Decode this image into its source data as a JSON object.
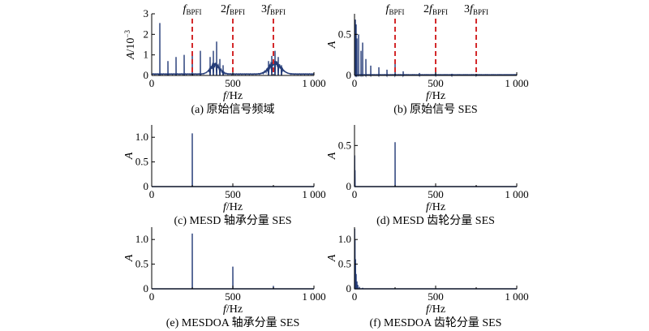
{
  "figure": {
    "marker_color": "#d3292b",
    "series_color": "#253c78"
  },
  "chart_data": [
    {
      "id": "a",
      "type": "line",
      "caption": "(a) 原始信号频域",
      "xlabel": "f/Hz",
      "ylabel": "A/10^-3",
      "xlim": [
        0,
        1000
      ],
      "ylim": [
        0,
        3
      ],
      "xticks": [
        "0",
        "500",
        "1 000"
      ],
      "yticks": [
        "0",
        "1",
        "2",
        "3"
      ],
      "markers": [
        {
          "x": 250,
          "prefix": "",
          "sub": "BPFI"
        },
        {
          "x": 500,
          "prefix": "2",
          "sub": "BPFI"
        },
        {
          "x": 750,
          "prefix": "3",
          "sub": "BPFI"
        }
      ],
      "peaks": [
        [
          50,
          2.55
        ],
        [
          100,
          0.7
        ],
        [
          150,
          0.9
        ],
        [
          200,
          1.0
        ],
        [
          250,
          1.1
        ],
        [
          300,
          1.2
        ],
        [
          360,
          0.9
        ],
        [
          380,
          1.2
        ],
        [
          400,
          1.65
        ],
        [
          420,
          0.8
        ],
        [
          440,
          0.5
        ],
        [
          720,
          0.7
        ],
        [
          740,
          0.95
        ],
        [
          760,
          1.2
        ],
        [
          780,
          0.9
        ],
        [
          800,
          0.5
        ]
      ],
      "humps": [
        {
          "center": 390,
          "width": 40,
          "height": 0.55
        },
        {
          "center": 760,
          "width": 50,
          "height": 0.65
        }
      ],
      "baseline": 0.08
    },
    {
      "id": "b",
      "type": "line",
      "caption": "(b) 原始信号 SES",
      "xlabel": "f/Hz",
      "ylabel": "A",
      "xlim": [
        0,
        1000
      ],
      "ylim": [
        0,
        0.75
      ],
      "xticks": [
        "0",
        "500",
        "1 000"
      ],
      "yticks": [
        "0",
        "0.5"
      ],
      "markers": [
        {
          "x": 250,
          "prefix": "",
          "sub": "BPFI"
        },
        {
          "x": 500,
          "prefix": "2",
          "sub": "BPFI"
        },
        {
          "x": 750,
          "prefix": "3",
          "sub": "BPFI"
        }
      ],
      "peaks": [
        [
          5,
          0.68
        ],
        [
          10,
          0.62
        ],
        [
          15,
          0.45
        ],
        [
          25,
          0.5
        ],
        [
          40,
          0.3
        ],
        [
          50,
          0.4
        ],
        [
          70,
          0.2
        ],
        [
          100,
          0.12
        ],
        [
          150,
          0.1
        ],
        [
          200,
          0.07
        ],
        [
          250,
          0.15
        ],
        [
          300,
          0.05
        ],
        [
          400,
          0.03
        ],
        [
          500,
          0.04
        ],
        [
          600,
          0.02
        ],
        [
          750,
          0.01
        ]
      ],
      "humps": [],
      "baseline": 0.01
    },
    {
      "id": "c",
      "type": "line",
      "caption": "(c) MESD 轴承分量 SES",
      "xlabel": "f/Hz",
      "ylabel": "A",
      "xlim": [
        0,
        1000
      ],
      "ylim": [
        0,
        1.25
      ],
      "xticks": [
        "0",
        "500",
        "1 000"
      ],
      "yticks": [
        "0",
        "0.5",
        "1.0"
      ],
      "markers": [],
      "peaks": [
        [
          250,
          1.08
        ]
      ],
      "humps": [],
      "baseline": 0.0
    },
    {
      "id": "d",
      "type": "line",
      "caption": "(d) MESD 齿轮分量 SES",
      "xlabel": "f/Hz",
      "ylabel": "A",
      "xlim": [
        0,
        1000
      ],
      "ylim": [
        0,
        0.75
      ],
      "xticks": [
        "0",
        "500",
        "1 000"
      ],
      "yticks": [
        "0",
        "0.5"
      ],
      "markers": [],
      "peaks": [
        [
          1,
          0.38
        ],
        [
          3,
          0.2
        ],
        [
          250,
          0.54
        ],
        [
          750,
          0.01
        ]
      ],
      "humps": [],
      "baseline": 0.0
    },
    {
      "id": "e",
      "type": "line",
      "caption": "(e) MESDOA 轴承分量 SES",
      "xlabel": "f/Hz",
      "ylabel": "A",
      "xlim": [
        0,
        1000
      ],
      "ylim": [
        0,
        1.25
      ],
      "xticks": [
        "0",
        "500",
        "1 000"
      ],
      "yticks": [
        "0",
        "0.5",
        "1.0"
      ],
      "markers": [],
      "peaks": [
        [
          250,
          1.12
        ],
        [
          500,
          0.45
        ],
        [
          750,
          0.06
        ]
      ],
      "humps": [],
      "baseline": 0.0
    },
    {
      "id": "f",
      "type": "line",
      "caption": "(f) MESDOA 齿轮分量 SES",
      "xlabel": "f/Hz",
      "ylabel": "A",
      "xlim": [
        0,
        1000
      ],
      "ylim": [
        0,
        1.25
      ],
      "xticks": [
        "0",
        "500",
        "1 000"
      ],
      "yticks": [
        "0",
        "0.5",
        "1.0"
      ],
      "markers": [],
      "peaks": [
        [
          1,
          1.22
        ],
        [
          3,
          1.0
        ],
        [
          6,
          0.6
        ],
        [
          10,
          0.3
        ],
        [
          15,
          0.15
        ],
        [
          20,
          0.08
        ],
        [
          30,
          0.04
        ],
        [
          50,
          0.02
        ]
      ],
      "humps": [],
      "baseline": 0.0
    }
  ]
}
